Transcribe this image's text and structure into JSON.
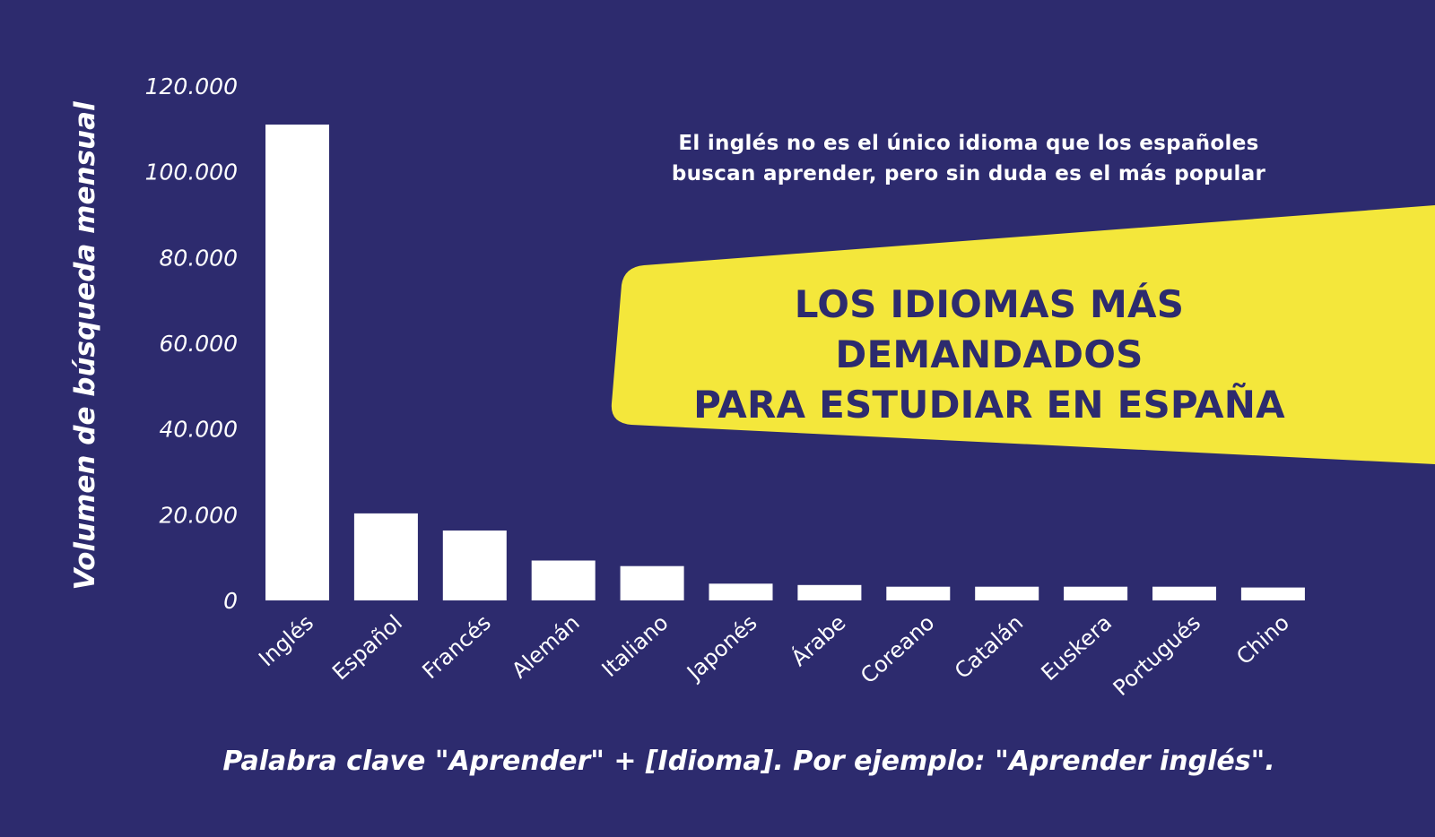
{
  "colors": {
    "background": "#2d2b6e",
    "bars": "#ffffff",
    "banner": "#f4e73b",
    "title_text": "#2d2b6e"
  },
  "banner": {
    "subtitle_lines": [
      "El inglés no es el único idioma que los españoles",
      "buscan aprender, pero sin duda es el más popular"
    ],
    "title_lines": [
      "LOS IDIOMAS MÁS DEMANDADOS",
      "PARA ESTUDIAR EN ESPAÑA"
    ]
  },
  "footnote": "Palabra clave \"Aprender\" + [Idioma]. Por ejemplo: \"Aprender inglés\".",
  "chart_data": {
    "type": "bar",
    "title": "",
    "xlabel": "",
    "ylabel": "Volumen de búsqueda mensual",
    "categories": [
      "Inglés",
      "Español",
      "Francés",
      "Alemán",
      "Italiano",
      "Japonés",
      "Árabe",
      "Coreano",
      "Catalán",
      "Euskera",
      "Portugués",
      "Chino"
    ],
    "values": [
      111000,
      20300,
      16300,
      9300,
      8000,
      3900,
      3600,
      3200,
      3200,
      3200,
      3200,
      3000
    ],
    "ylim": [
      0,
      120000
    ],
    "yticks": [
      {
        "value": 0,
        "label": "0"
      },
      {
        "value": 20000,
        "label": "20.000"
      },
      {
        "value": 40000,
        "label": "40.000"
      },
      {
        "value": 60000,
        "label": "60.000"
      },
      {
        "value": 80000,
        "label": "80.000"
      },
      {
        "value": 100000,
        "label": "100.000"
      },
      {
        "value": 120000,
        "label": "120.000"
      }
    ],
    "grid": false,
    "legend": "none"
  }
}
